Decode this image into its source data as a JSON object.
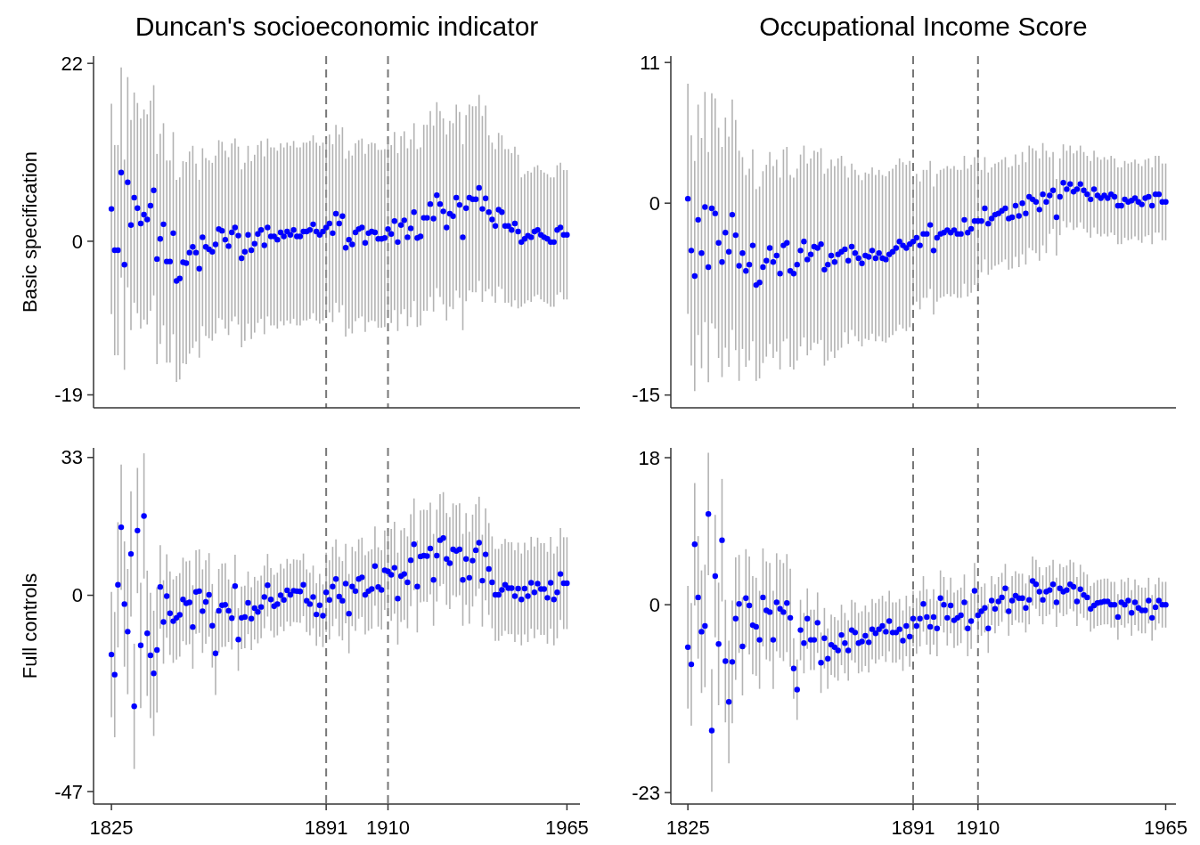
{
  "chart_data": [
    {
      "type": "scatter",
      "title": "Duncan's socioeconomic indicator",
      "ylabel": "Basic specification",
      "tick_labels": "y",
      "marker": "circle",
      "xlim": [
        1819.5,
        1969
      ],
      "ylim": [
        -20.6,
        22.9
      ],
      "yticks": [
        -19,
        0,
        22
      ],
      "x": [
        1825,
        1826,
        1827,
        1828,
        1829,
        1830,
        1831,
        1832,
        1833,
        1834,
        1835,
        1836,
        1837,
        1838,
        1839,
        1840,
        1841,
        1842,
        1843,
        1844,
        1845,
        1846,
        1847,
        1848,
        1849,
        1850,
        1851,
        1852,
        1853,
        1854,
        1855,
        1856,
        1857,
        1858,
        1859,
        1860,
        1861,
        1862,
        1863,
        1864,
        1865,
        1866,
        1867,
        1868,
        1869,
        1870,
        1871,
        1872,
        1873,
        1874,
        1875,
        1876,
        1877,
        1878,
        1879,
        1880,
        1881,
        1882,
        1883,
        1884,
        1885,
        1886,
        1887,
        1888,
        1889,
        1890,
        1891,
        1892,
        1893,
        1894,
        1895,
        1896,
        1897,
        1898,
        1899,
        1900,
        1901,
        1902,
        1903,
        1904,
        1905,
        1906,
        1907,
        1908,
        1909,
        1910,
        1911,
        1912,
        1913,
        1914,
        1915,
        1916,
        1917,
        1918,
        1919,
        1920,
        1921,
        1922,
        1923,
        1924,
        1925,
        1926,
        1927,
        1928,
        1929,
        1930,
        1931,
        1932,
        1933,
        1934,
        1935,
        1936,
        1937,
        1938,
        1939,
        1940,
        1941,
        1942,
        1943,
        1944,
        1945,
        1946,
        1947,
        1948,
        1949,
        1950,
        1951,
        1952,
        1953,
        1954,
        1955,
        1956,
        1957,
        1958,
        1959,
        1960,
        1961,
        1962,
        1963,
        1964,
        1965
      ],
      "ref_lines": [
        {
          "axis": "x",
          "value": 1891,
          "color": "#777777",
          "line_style": "dashed"
        },
        {
          "axis": "x",
          "value": 1910,
          "color": "#777777",
          "line_style": "dashed"
        }
      ],
      "series": [
        {
          "color": "#0000ff",
          "values": [
            4.0,
            -1.1,
            -1.1,
            8.5,
            -2.9,
            7.3,
            2.0,
            5.4,
            4.1,
            2.2,
            3.3,
            2.7,
            4.4,
            6.3,
            -2.2,
            0.3,
            2.1,
            -2.5,
            -2.5,
            1.0,
            -4.9,
            -4.6,
            -2.6,
            -2.7,
            -1.4,
            -0.7,
            -1.4,
            -3.4,
            0.5,
            -0.7,
            -1.0,
            -1.3,
            -0.4,
            1.5,
            1.3,
            0.2,
            -0.6,
            1.1,
            1.7,
            0.7,
            -2.1,
            -1.3,
            0.8,
            -1.1,
            -0.3,
            0.9,
            1.4,
            -0.5,
            1.7,
            0.6,
            0.6,
            0.2,
            1.1,
            0.6,
            1.2,
            0.8,
            1.4,
            0.6,
            0.6,
            1.2,
            1.2,
            1.4,
            2.1,
            1.2,
            0.8,
            1.2,
            1.7,
            2.2,
            1.0,
            3.4,
            2.2,
            3.1,
            -0.8,
            0.2,
            -0.4,
            1.1,
            1.5,
            1.7,
            -0.2,
            1.0,
            1.2,
            1.1,
            0.3,
            0.3,
            0.4,
            1.5,
            0.9,
            2.5,
            -0.1,
            2.0,
            2.6,
            0.5,
            1.6,
            3.6,
            0.4,
            0.6,
            2.9,
            2.9,
            4.6,
            2.8,
            5.7,
            4.6,
            3.7,
            1.7,
            3.4,
            3.1,
            5.4,
            4.5,
            0.5,
            4.1,
            5.4,
            5.2,
            5.2,
            6.6,
            4.0,
            5.3,
            3.6,
            2.7,
            1.9,
            3.9,
            3.6,
            1.9,
            1.9,
            1.4,
            2.2,
            1.2,
            -0.1,
            0.3,
            0.7,
            0.5,
            1.2,
            1.4,
            0.8,
            0.5,
            0.3,
            -0.1,
            -0.1,
            1.4,
            1.7,
            0.8,
            0.8
          ],
          "errors": [
            13,
            13,
            13,
            13,
            13,
            13,
            13,
            13,
            13,
            13,
            13,
            13,
            13,
            13,
            13,
            13,
            12.5,
            12.5,
            12.5,
            12.5,
            12.5,
            12.5,
            12.5,
            12.5,
            12.5,
            12.5,
            11,
            11,
            11,
            11,
            11,
            11,
            11,
            11,
            11,
            11,
            11,
            11,
            11,
            11,
            11,
            11,
            11,
            11,
            11,
            11,
            11,
            11,
            11,
            11,
            11,
            11,
            11,
            11,
            11,
            11,
            11,
            11,
            11,
            11,
            11,
            11,
            11,
            11,
            11,
            11,
            11,
            11,
            11,
            11,
            11,
            11,
            11,
            11,
            11,
            11,
            11,
            11,
            11,
            11,
            11,
            11,
            11,
            11,
            11,
            11,
            11,
            11,
            11,
            11,
            11,
            11,
            11,
            11,
            11,
            11,
            11.5,
            11.5,
            11.5,
            11.5,
            11.5,
            11.5,
            11.5,
            11.5,
            11.5,
            11.5,
            11.5,
            11.5,
            11.5,
            11.5,
            11.5,
            11.5,
            11.5,
            11.5,
            11.5,
            11.5,
            9.5,
            9.5,
            9.5,
            9.5,
            9.5,
            9.5,
            9.5,
            9.5,
            9.5,
            9.5,
            8,
            8,
            8,
            8,
            8,
            8,
            8,
            8,
            8,
            8,
            8,
            8,
            8,
            8,
            8
          ]
        }
      ]
    },
    {
      "type": "scatter",
      "title": "Occupational Income Score",
      "tick_labels": "y",
      "marker": "circle",
      "xlim": [
        1820,
        1968
      ],
      "ylim": [
        -16,
        11.5
      ],
      "yticks": [
        -15,
        0,
        11
      ],
      "x": [
        1825,
        1826,
        1827,
        1828,
        1829,
        1830,
        1831,
        1832,
        1833,
        1834,
        1835,
        1836,
        1837,
        1838,
        1839,
        1840,
        1841,
        1842,
        1843,
        1844,
        1845,
        1846,
        1847,
        1848,
        1849,
        1850,
        1851,
        1852,
        1853,
        1854,
        1855,
        1856,
        1857,
        1858,
        1859,
        1860,
        1861,
        1862,
        1863,
        1864,
        1865,
        1866,
        1867,
        1868,
        1869,
        1870,
        1871,
        1872,
        1873,
        1874,
        1875,
        1876,
        1877,
        1878,
        1879,
        1880,
        1881,
        1882,
        1883,
        1884,
        1885,
        1886,
        1887,
        1888,
        1889,
        1890,
        1891,
        1892,
        1893,
        1894,
        1895,
        1896,
        1897,
        1898,
        1899,
        1900,
        1901,
        1902,
        1903,
        1904,
        1905,
        1906,
        1907,
        1908,
        1909,
        1910,
        1911,
        1912,
        1913,
        1914,
        1915,
        1916,
        1917,
        1918,
        1919,
        1920,
        1921,
        1922,
        1923,
        1924,
        1925,
        1926,
        1927,
        1928,
        1929,
        1930,
        1931,
        1932,
        1933,
        1934,
        1935,
        1936,
        1937,
        1938,
        1939,
        1940,
        1941,
        1942,
        1943,
        1944,
        1945,
        1946,
        1947,
        1948,
        1949,
        1950,
        1951,
        1952,
        1953,
        1954,
        1955,
        1956,
        1957,
        1958,
        1959,
        1960,
        1961,
        1962,
        1963,
        1964,
        1965
      ],
      "ref_lines": [
        {
          "axis": "x",
          "value": 1891,
          "color": "#777777",
          "line_style": "dashed"
        },
        {
          "axis": "x",
          "value": 1910,
          "color": "#777777",
          "line_style": "dashed"
        }
      ],
      "series": [
        {
          "color": "#0000ff",
          "values": [
            0.35,
            -3.7,
            -5.7,
            -1.3,
            -3.9,
            -0.3,
            -5.0,
            -0.4,
            -0.8,
            -3.1,
            -4.6,
            -2.3,
            -3.8,
            -0.9,
            -2.5,
            -4.9,
            -3.9,
            -5.3,
            -4.8,
            -3.3,
            -6.4,
            -6.2,
            -5.0,
            -4.5,
            -3.5,
            -4.6,
            -4.1,
            -5.5,
            -3.3,
            -3.1,
            -5.3,
            -5.5,
            -4.8,
            -3.7,
            -3.0,
            -4.4,
            -4.0,
            -3.4,
            -3.5,
            -3.2,
            -5.2,
            -4.8,
            -4.1,
            -4.6,
            -4.0,
            -3.8,
            -3.6,
            -4.5,
            -3.4,
            -3.9,
            -4.3,
            -4.7,
            -4.1,
            -4.2,
            -3.7,
            -4.3,
            -3.9,
            -4.3,
            -4.4,
            -4.0,
            -3.8,
            -3.5,
            -3.0,
            -3.3,
            -3.5,
            -3.2,
            -3.0,
            -2.7,
            -3.3,
            -2.4,
            -2.4,
            -1.7,
            -3.7,
            -2.7,
            -2.4,
            -2.3,
            -2.1,
            -2.3,
            -2.1,
            -2.4,
            -2.4,
            -1.3,
            -2.3,
            -2.0,
            -1.4,
            -1.4,
            -1.4,
            -0.4,
            -1.6,
            -1.2,
            -0.9,
            -0.8,
            -0.6,
            -0.4,
            -1.2,
            -1.1,
            -0.2,
            -1.0,
            0.0,
            -0.8,
            0.5,
            0.3,
            0.1,
            -0.5,
            0.7,
            0.1,
            0.6,
            1.0,
            -1.1,
            0.5,
            1.6,
            1.1,
            1.5,
            0.9,
            1.1,
            1.5,
            1.0,
            0.7,
            0.3,
            1.1,
            0.6,
            0.4,
            0.6,
            0.4,
            0.7,
            0.5,
            -0.2,
            -0.2,
            0.3,
            0.1,
            0.2,
            0.4,
            0.1,
            -0.1,
            0.4,
            0.5,
            -0.2,
            0.7,
            0.7,
            0.1,
            0.1
          ],
          "errors": [
            9,
            9,
            9,
            9,
            9,
            9,
            9,
            9,
            9,
            9,
            9,
            9,
            9,
            9,
            9,
            9,
            7.5,
            7.5,
            7.5,
            7.5,
            7.5,
            7.5,
            7.5,
            7.5,
            7.5,
            7.5,
            7.5,
            7.5,
            7.5,
            7.5,
            7.5,
            7.5,
            7.5,
            7.5,
            7.5,
            7.5,
            7.5,
            7.5,
            7.5,
            7.5,
            7.5,
            7.5,
            7.5,
            7.5,
            7.5,
            7.5,
            6.5,
            6.5,
            6.5,
            6.5,
            6.5,
            6.5,
            6.5,
            6.5,
            6.5,
            6.5,
            6.5,
            6.5,
            6.5,
            6.5,
            6.5,
            6.5,
            6.5,
            6.5,
            6.5,
            6.5,
            5,
            5,
            5,
            5,
            5,
            5,
            5,
            5,
            5,
            5,
            5,
            5,
            5,
            5,
            5,
            5,
            5,
            5,
            5,
            5,
            4,
            4,
            4,
            4,
            4,
            4,
            4,
            4,
            4,
            4,
            4,
            4,
            4,
            4,
            4,
            4,
            4,
            4,
            4,
            4,
            3,
            3,
            3,
            3,
            3,
            3,
            3,
            3,
            3,
            3,
            3,
            3,
            3,
            3,
            3,
            3,
            3,
            3,
            3,
            3,
            3,
            3,
            3,
            3,
            3,
            3,
            3,
            3,
            3,
            3,
            3,
            3,
            3,
            3,
            3
          ]
        }
      ]
    },
    {
      "type": "scatter",
      "ylabel": "Full controls",
      "marker": "circle",
      "xlim": [
        1819.5,
        1969
      ],
      "ylim": [
        -50,
        35.3
      ],
      "yticks": [
        -47,
        0,
        33
      ],
      "xticks": [
        1825,
        1891,
        1910,
        1965
      ],
      "x": [
        1825,
        1826,
        1827,
        1828,
        1829,
        1830,
        1831,
        1832,
        1833,
        1834,
        1835,
        1836,
        1837,
        1838,
        1839,
        1840,
        1841,
        1842,
        1843,
        1844,
        1845,
        1846,
        1847,
        1848,
        1849,
        1850,
        1851,
        1852,
        1853,
        1854,
        1855,
        1856,
        1857,
        1858,
        1859,
        1860,
        1861,
        1862,
        1863,
        1864,
        1865,
        1866,
        1867,
        1868,
        1869,
        1870,
        1871,
        1872,
        1873,
        1874,
        1875,
        1876,
        1877,
        1878,
        1879,
        1880,
        1881,
        1882,
        1883,
        1884,
        1885,
        1886,
        1887,
        1888,
        1889,
        1890,
        1891,
        1892,
        1893,
        1894,
        1895,
        1896,
        1897,
        1898,
        1899,
        1900,
        1901,
        1902,
        1903,
        1904,
        1905,
        1906,
        1907,
        1908,
        1909,
        1910,
        1911,
        1912,
        1913,
        1914,
        1915,
        1916,
        1917,
        1918,
        1919,
        1920,
        1921,
        1922,
        1923,
        1924,
        1925,
        1926,
        1927,
        1928,
        1929,
        1930,
        1931,
        1932,
        1933,
        1934,
        1935,
        1936,
        1937,
        1938,
        1939,
        1940,
        1941,
        1942,
        1943,
        1944,
        1945,
        1946,
        1947,
        1948,
        1949,
        1950,
        1951,
        1952,
        1953,
        1954,
        1955,
        1956,
        1957,
        1958,
        1959,
        1960,
        1961,
        1962,
        1963,
        1964,
        1965
      ],
      "ref_lines": [
        {
          "axis": "x",
          "value": 1891,
          "color": "#777777",
          "line_style": "dashed"
        },
        {
          "axis": "x",
          "value": 1910,
          "color": "#777777",
          "line_style": "dashed"
        }
      ],
      "series": [
        {
          "color": "#0000ff",
          "values": [
            -14.2,
            -19.0,
            2.5,
            16.3,
            -2.1,
            -8.7,
            9.9,
            -26.6,
            15.5,
            -12.0,
            19.0,
            -9.1,
            -14.4,
            -18.7,
            -13.1,
            2.0,
            -6.4,
            -0.2,
            -4.3,
            -6.2,
            -5.4,
            -4.7,
            -1.0,
            -1.9,
            -1.7,
            -7.6,
            0.8,
            1.0,
            -3.8,
            -1.6,
            0.1,
            -7.3,
            -13.9,
            -3.7,
            -2.4,
            -2.3,
            -3.7,
            -5.5,
            2.2,
            -10.6,
            -5.4,
            -5.2,
            -1.8,
            -5.6,
            -3.1,
            -4.0,
            -2.8,
            -0.4,
            2.4,
            -1.0,
            -2.6,
            -2.1,
            0.0,
            -1.1,
            1.2,
            0.1,
            1.1,
            1.0,
            0.9,
            2.5,
            -1.3,
            -2.1,
            -0.4,
            -4.6,
            -2.4,
            -4.9,
            0.7,
            -1.1,
            2.1,
            3.9,
            -0.3,
            -1.3,
            2.8,
            -4.4,
            2.1,
            1.0,
            3.9,
            4.3,
            0.1,
            1.0,
            1.5,
            7.0,
            2.0,
            1.3,
            6.0,
            5.7,
            4.9,
            6.6,
            -0.8,
            4.6,
            5.1,
            3.1,
            8.4,
            12.2,
            2.1,
            9.3,
            9.5,
            9.4,
            11.2,
            3.7,
            9.5,
            13.2,
            13.7,
            8.7,
            7.7,
            11.0,
            10.6,
            11.0,
            3.7,
            8.7,
            4.2,
            8.3,
            10.8,
            12.6,
            3.5,
            9.8,
            6.3,
            3.1,
            0.1,
            0.1,
            1.3,
            2.5,
            1.7,
            1.7,
            -0.2,
            1.6,
            -1.0,
            1.6,
            -0.2,
            3.0,
            0.7,
            2.8,
            1.5,
            1.5,
            -0.6,
            3.0,
            -1.0,
            0.7,
            5.1,
            2.9,
            2.9
          ],
          "errors": [
            15,
            15,
            15,
            15,
            15,
            15,
            15,
            15,
            15,
            15,
            15,
            15,
            15,
            15,
            15,
            10,
            10,
            10,
            10,
            10,
            10,
            10,
            10,
            10,
            10,
            10,
            10,
            10,
            10,
            10,
            10,
            10,
            10,
            10,
            10,
            10,
            7.5,
            7.5,
            7.5,
            7.5,
            7.5,
            7.5,
            7.5,
            7.5,
            7.5,
            7.5,
            7.5,
            7.5,
            7.5,
            7.5,
            7.5,
            7.5,
            7.5,
            7.5,
            7.5,
            7.5,
            7.5,
            7.5,
            7.5,
            7.5,
            7.5,
            7.5,
            7.5,
            7.5,
            7.5,
            7.5,
            9.5,
            9.5,
            9.5,
            9.5,
            9.5,
            9.5,
            9.5,
            9.5,
            9.5,
            9.5,
            9.5,
            9.5,
            9.5,
            9.5,
            9.5,
            9.5,
            9.5,
            9.5,
            9.5,
            9.5,
            11,
            11,
            11,
            11,
            11,
            11,
            11,
            11,
            11,
            11,
            11,
            11,
            11,
            11,
            11,
            11,
            11,
            11,
            11,
            11,
            11,
            11,
            11,
            11,
            11,
            11,
            11,
            11,
            11,
            11,
            11,
            11,
            11,
            11,
            11,
            11,
            11,
            11,
            11,
            11,
            11,
            11,
            11,
            11,
            11,
            11,
            11,
            11,
            11,
            11,
            11,
            11,
            11,
            11,
            11
          ]
        }
      ]
    },
    {
      "type": "scatter",
      "marker": "circle",
      "xlim": [
        1820,
        1968
      ],
      "ylim": [
        -24.4,
        19.2
      ],
      "yticks": [
        -23,
        0,
        18
      ],
      "xticks": [
        1825,
        1891,
        1910,
        1965
      ],
      "x": [
        1825,
        1826,
        1827,
        1828,
        1829,
        1830,
        1831,
        1832,
        1833,
        1834,
        1835,
        1836,
        1837,
        1838,
        1839,
        1840,
        1841,
        1842,
        1843,
        1844,
        1845,
        1846,
        1847,
        1848,
        1849,
        1850,
        1851,
        1852,
        1853,
        1854,
        1855,
        1856,
        1857,
        1858,
        1859,
        1860,
        1861,
        1862,
        1863,
        1864,
        1865,
        1866,
        1867,
        1868,
        1869,
        1870,
        1871,
        1872,
        1873,
        1874,
        1875,
        1876,
        1877,
        1878,
        1879,
        1880,
        1881,
        1882,
        1883,
        1884,
        1885,
        1886,
        1887,
        1888,
        1889,
        1890,
        1891,
        1892,
        1893,
        1894,
        1895,
        1896,
        1897,
        1898,
        1899,
        1900,
        1901,
        1902,
        1903,
        1904,
        1905,
        1906,
        1907,
        1908,
        1909,
        1910,
        1911,
        1912,
        1913,
        1914,
        1915,
        1916,
        1917,
        1918,
        1919,
        1920,
        1921,
        1922,
        1923,
        1924,
        1925,
        1926,
        1927,
        1928,
        1929,
        1930,
        1931,
        1932,
        1933,
        1934,
        1935,
        1936,
        1937,
        1938,
        1939,
        1940,
        1941,
        1942,
        1943,
        1944,
        1945,
        1946,
        1947,
        1948,
        1949,
        1950,
        1951,
        1952,
        1953,
        1954,
        1955,
        1956,
        1957,
        1958,
        1959,
        1960,
        1961,
        1962,
        1963,
        1964,
        1965
      ],
      "ref_lines": [
        {
          "axis": "x",
          "value": 1891,
          "color": "#777777",
          "line_style": "dashed"
        },
        {
          "axis": "x",
          "value": 1910,
          "color": "#777777",
          "line_style": "dashed"
        }
      ],
      "series": [
        {
          "color": "#0000ff",
          "values": [
            -5.2,
            -7.3,
            7.4,
            0.9,
            -3.3,
            -2.6,
            11.1,
            -15.4,
            3.5,
            -4.8,
            7.9,
            -6.9,
            -11.9,
            -7.0,
            -1.7,
            0.1,
            -5.1,
            0.8,
            -0.1,
            -2.5,
            -2.7,
            -4.3,
            0.9,
            -0.7,
            -0.9,
            -4.3,
            0.3,
            -0.5,
            -0.9,
            0.2,
            -1.6,
            -7.8,
            -10.4,
            -3.1,
            -4.7,
            -1.7,
            -4.3,
            -4.3,
            -2.2,
            -7.1,
            -4.1,
            -6.6,
            -4.9,
            -5.2,
            -5.6,
            -3.7,
            -4.7,
            -5.6,
            -3.1,
            -3.4,
            -4.7,
            -4.5,
            -3.8,
            -4.6,
            -3.0,
            -3.5,
            -3.0,
            -2.6,
            -3.3,
            -2.0,
            -3.4,
            -3.4,
            -3.0,
            -4.4,
            -2.6,
            -3.9,
            -1.7,
            -2.6,
            -1.7,
            0.1,
            -1.5,
            -2.7,
            -1.5,
            -2.9,
            0.8,
            0.0,
            -1.6,
            -0.1,
            -1.9,
            -1.6,
            -1.3,
            0.3,
            -2.9,
            -2.0,
            1.7,
            -1.3,
            -0.8,
            -0.4,
            -2.9,
            0.5,
            -0.5,
            0.4,
            0.9,
            2.0,
            -0.8,
            0.5,
            1.1,
            0.8,
            0.8,
            -0.4,
            0.6,
            2.9,
            2.5,
            1.6,
            0.6,
            1.6,
            1.8,
            2.5,
            0.3,
            2.0,
            1.6,
            1.8,
            2.5,
            2.2,
            0.4,
            1.9,
            1.2,
            0.9,
            -0.5,
            -0.1,
            0.2,
            0.3,
            0.4,
            0.4,
            0.0,
            0.0,
            -1.5,
            0.3,
            0.0,
            0.5,
            -1.0,
            0.3,
            -0.4,
            -0.7,
            -0.7,
            0.5,
            -1.6,
            -0.3,
            0.5,
            0.0,
            0.0
          ],
          "errors": [
            7.5,
            7.5,
            7.5,
            7.5,
            7.5,
            7.5,
            7.5,
            7.5,
            7.5,
            7.5,
            7.5,
            7.5,
            7.5,
            7.5,
            7.5,
            6,
            6,
            6,
            6,
            6,
            6,
            6,
            6,
            6,
            6,
            6,
            6,
            6,
            6,
            6,
            6,
            3.7,
            3.7,
            3.7,
            3.7,
            3.7,
            3.7,
            3.7,
            3.7,
            3.7,
            3.7,
            3.7,
            3.7,
            3.7,
            3.7,
            3.7,
            3.7,
            3.7,
            3.7,
            3.7,
            3.7,
            3.7,
            3.7,
            3.7,
            3.7,
            3.7,
            3.7,
            3.7,
            3.7,
            3.7,
            3.7,
            3.7,
            3.7,
            3.7,
            3.7,
            3.7,
            3.4,
            3.4,
            3.4,
            3.4,
            3.4,
            3.4,
            3.4,
            3.4,
            3.4,
            3.4,
            3.4,
            3.4,
            3.4,
            3.4,
            3.4,
            3.4,
            3.4,
            3.4,
            3.4,
            3.4,
            3,
            3,
            3,
            3,
            3,
            3,
            3,
            3,
            3,
            3,
            3,
            3,
            3,
            3,
            3,
            3,
            3,
            3,
            3,
            3,
            3,
            3,
            3,
            3,
            3,
            3,
            3,
            3,
            3,
            3,
            2.8,
            2.8,
            2.8,
            2.8,
            2.8,
            2.8,
            2.8,
            2.8,
            2.8,
            2.8,
            2.8,
            2.8,
            2.8,
            2.8,
            2.8,
            2.8,
            2.8,
            2.8,
            2.8,
            2.8,
            2.8,
            2.8,
            2.8,
            2.8,
            2.8
          ]
        }
      ]
    }
  ]
}
